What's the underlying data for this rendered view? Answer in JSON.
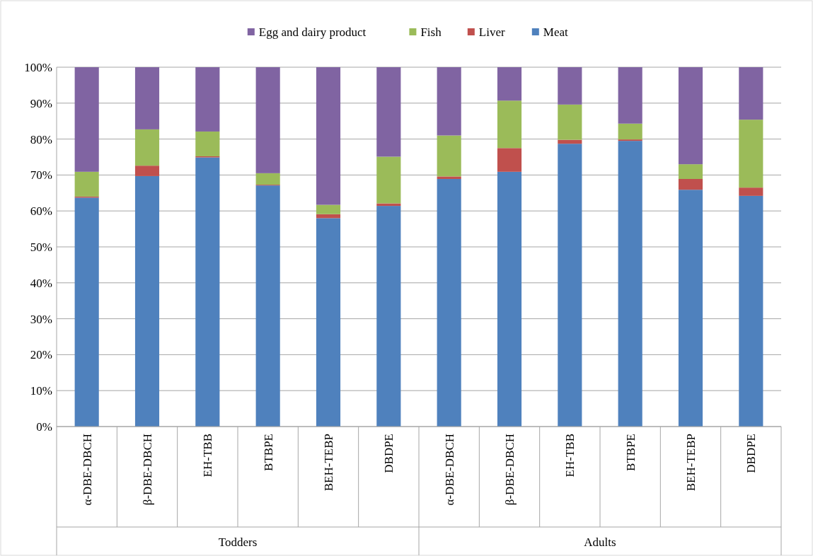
{
  "chart_data": {
    "type": "bar",
    "stacked": true,
    "categories": [
      "α-DBE-DBCH",
      "β-DBE-DBCH",
      "EH-TBB",
      "BTBPE",
      "BEH-TEBP",
      "DBDPE",
      "α-DBE-DBCH",
      "β-DBE-DBCH",
      "EH-TBB",
      "BTBPE",
      "BEH-TEBP",
      "DBDPE"
    ],
    "series": [
      {
        "name": "Meat",
        "color": "#4f81bd",
        "values": [
          63.7,
          69.7,
          74.9,
          67.1,
          58.0,
          61.4,
          68.9,
          70.9,
          78.7,
          79.5,
          65.9,
          64.2
        ]
      },
      {
        "name": "Liver",
        "color": "#c0504d",
        "values": [
          0.3,
          2.9,
          0.3,
          0.2,
          1.1,
          0.7,
          0.7,
          6.6,
          1.1,
          0.4,
          3.0,
          2.3
        ]
      },
      {
        "name": "Fish",
        "color": "#9bbb59",
        "values": [
          6.9,
          10.1,
          6.9,
          3.2,
          2.6,
          13.0,
          11.4,
          13.2,
          9.8,
          4.4,
          4.1,
          18.9
        ]
      },
      {
        "name": "Egg and dairy product",
        "color": "#8064a2",
        "values": [
          29.1,
          17.3,
          17.9,
          29.5,
          38.3,
          24.9,
          19.0,
          9.3,
          10.4,
          15.7,
          27.0,
          14.6
        ]
      }
    ],
    "ylim": [
      0,
      100
    ],
    "yticks": [
      {
        "value": 0,
        "label": "0%"
      },
      {
        "value": 10,
        "label": "10%"
      },
      {
        "value": 20,
        "label": "20%"
      },
      {
        "value": 30,
        "label": "30%"
      },
      {
        "value": 40,
        "label": "40%"
      },
      {
        "value": 50,
        "label": "50%"
      },
      {
        "value": 60,
        "label": "60%"
      },
      {
        "value": 70,
        "label": "70%"
      },
      {
        "value": 80,
        "label": "80%"
      },
      {
        "value": 90,
        "label": "90%"
      },
      {
        "value": 100,
        "label": "100%"
      }
    ],
    "annotations": [
      "Todders",
      "Adults"
    ],
    "grid": "y",
    "legend": "top"
  }
}
